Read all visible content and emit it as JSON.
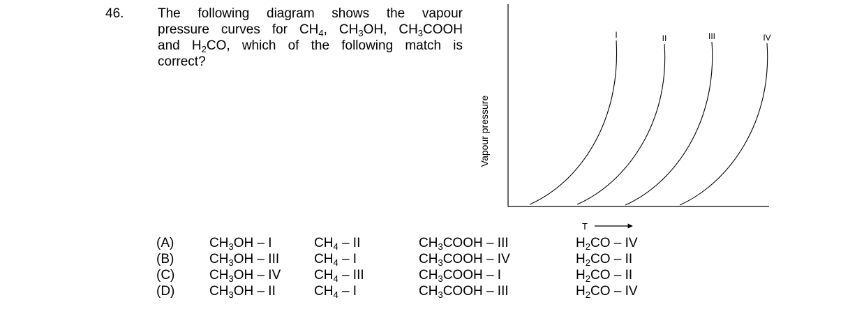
{
  "question": {
    "number": "46.",
    "lines": [
      [
        {
          "t": "The following diagram shows the vapour"
        }
      ],
      [
        {
          "t": "pressure curves for CH"
        },
        {
          "s": "4"
        },
        {
          "t": ", CH"
        },
        {
          "s": "3"
        },
        {
          "t": "OH, CH"
        },
        {
          "s": "3"
        },
        {
          "t": "COOH"
        }
      ],
      [
        {
          "t": "and H"
        },
        {
          "s": "2"
        },
        {
          "t": "CO, which of the following match is"
        }
      ],
      [
        {
          "t": "correct?"
        }
      ]
    ]
  },
  "diagram": {
    "y_axis_label": "Vapour pressure",
    "x_axis_label": "T",
    "curves": [
      {
        "label": "I"
      },
      {
        "label": "II"
      },
      {
        "label": "III"
      },
      {
        "label": "IV"
      }
    ]
  },
  "options": [
    {
      "label": "(A)",
      "matches": [
        [
          {
            "t": "CH"
          },
          {
            "s": "3"
          },
          {
            "t": "OH – I"
          }
        ],
        [
          {
            "t": "CH"
          },
          {
            "s": "4"
          },
          {
            "t": " – II"
          }
        ],
        [
          {
            "t": "CH"
          },
          {
            "s": "3"
          },
          {
            "t": "COOH – III"
          }
        ],
        [
          {
            "t": "H"
          },
          {
            "s": "2"
          },
          {
            "t": "CO – IV"
          }
        ]
      ]
    },
    {
      "label": "(B)",
      "matches": [
        [
          {
            "t": "CH"
          },
          {
            "s": "3"
          },
          {
            "t": "OH – III"
          }
        ],
        [
          {
            "t": "CH"
          },
          {
            "s": "4"
          },
          {
            "t": " – I"
          }
        ],
        [
          {
            "t": "CH"
          },
          {
            "s": "3"
          },
          {
            "t": "COOH – IV"
          }
        ],
        [
          {
            "t": "H"
          },
          {
            "s": "2"
          },
          {
            "t": "CO – II"
          }
        ]
      ]
    },
    {
      "label": "(C)",
      "matches": [
        [
          {
            "t": "CH"
          },
          {
            "s": "3"
          },
          {
            "t": "OH – IV"
          }
        ],
        [
          {
            "t": "CH"
          },
          {
            "s": "4"
          },
          {
            "t": " – III"
          }
        ],
        [
          {
            "t": "CH"
          },
          {
            "s": "3"
          },
          {
            "t": "COOH – I"
          }
        ],
        [
          {
            "t": "H"
          },
          {
            "s": "2"
          },
          {
            "t": "CO – II"
          }
        ]
      ]
    },
    {
      "label": "(D)",
      "matches": [
        [
          {
            "t": "CH"
          },
          {
            "s": "3"
          },
          {
            "t": "OH – II"
          }
        ],
        [
          {
            "t": "CH"
          },
          {
            "s": "4"
          },
          {
            "t": " – I"
          }
        ],
        [
          {
            "t": "CH"
          },
          {
            "s": "3"
          },
          {
            "t": "COOH – III"
          }
        ],
        [
          {
            "t": "H"
          },
          {
            "s": "2"
          },
          {
            "t": "CO – IV"
          }
        ]
      ]
    }
  ]
}
